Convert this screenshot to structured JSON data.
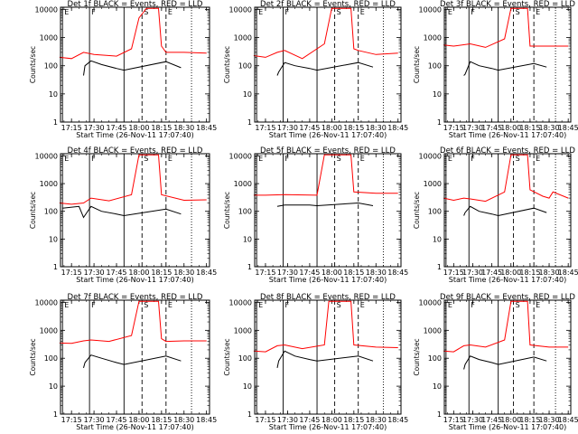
{
  "figure": {
    "panels": [
      {
        "title": "Det 1f BLACK = Events, RED = LLD",
        "xlabel": "Start Time (26-Nov-11 17:07:40)",
        "ylabel": "Counts/sec"
      },
      {
        "title": "Det 2f BLACK = Events, RED = LLD",
        "xlabel": "Start Time (26-Nov-11 17:07:40)",
        "ylabel": "Counts/sec"
      },
      {
        "title": "Det 3f BLACK = Events, RED = LLD",
        "xlabel": "Start Time (26-Nov-11 17:07:40)",
        "ylabel": "Counts/sec"
      },
      {
        "title": "Det 4f BLACK = Events, RED = LLD",
        "xlabel": "Start Time (26-Nov-11 17:07:40)",
        "ylabel": "Counts/sec"
      },
      {
        "title": "Det 5f BLACK = Events, RED = LLD",
        "xlabel": "Start Time (26-Nov-11 17:07:40)",
        "ylabel": "Counts/sec"
      },
      {
        "title": "Det 6f BLACK = Events, RED = LLD",
        "xlabel": "Start Time (26-Nov-11 17:07:40)",
        "ylabel": "Counts/sec"
      },
      {
        "title": "Det 7f BLACK = Events, RED = LLD",
        "xlabel": "Start Time (26-Nov-11 17:07:40)",
        "ylabel": "Counts/sec"
      },
      {
        "title": "Det 8f BLACK = Events, RED = LLD",
        "xlabel": "Start Time (26-Nov-11 17:07:40)",
        "ylabel": "Counts/sec"
      },
      {
        "title": "Det 9f BLACK = Events, RED = LLD",
        "xlabel": "Start Time (26-Nov-11 17:07:40)",
        "ylabel": "Counts/sec"
      }
    ]
  },
  "chart_data": {
    "type": "line",
    "y_scale": "log",
    "ylim": [
      1,
      12000
    ],
    "xlim": [
      "17:07:40",
      "18:47"
    ],
    "x_ticks": [
      "17:15",
      "17:30",
      "17:45",
      "18:00",
      "18:15",
      "18:30",
      "18:45"
    ],
    "y_ticks": [
      "1",
      "10",
      "100",
      "1000",
      "10000"
    ],
    "colors": {
      "events": "#000000",
      "lld": "#ff0000"
    },
    "markers": [
      {
        "time": "17:09",
        "style": "solid",
        "label": "E"
      },
      {
        "time": "17:27",
        "style": "solid",
        "label": "F"
      },
      {
        "time": "17:50",
        "style": "solid",
        "label": ""
      },
      {
        "time": "18:02",
        "style": "dashed",
        "label": "S"
      },
      {
        "time": "18:18",
        "style": "dashed",
        "label": "E"
      },
      {
        "time": "18:35",
        "style": "dotted",
        "label": ""
      }
    ],
    "series": [
      {
        "events": [
          [
            "17:23",
            45
          ],
          [
            "17:24",
            100
          ],
          [
            "17:28",
            150
          ],
          [
            "17:35",
            110
          ],
          [
            "17:45",
            80
          ],
          [
            "17:50",
            70
          ],
          [
            "18:18",
            140
          ],
          [
            "18:28",
            85
          ]
        ],
        "lld": [
          [
            "17:07",
            200
          ],
          [
            "17:15",
            180
          ],
          [
            "17:23",
            300
          ],
          [
            "17:30",
            250
          ],
          [
            "17:45",
            220
          ],
          [
            "17:55",
            400
          ],
          [
            "18:00",
            5000
          ],
          [
            "18:05",
            11000
          ],
          [
            "18:13",
            11000
          ],
          [
            "18:15",
            500
          ],
          [
            "18:18",
            300
          ],
          [
            "18:30",
            300
          ],
          [
            "18:45",
            280
          ]
        ]
      },
      {
        "events": [
          [
            "17:23",
            45
          ],
          [
            "17:24",
            60
          ],
          [
            "17:28",
            130
          ],
          [
            "17:35",
            100
          ],
          [
            "17:45",
            80
          ],
          [
            "17:50",
            70
          ],
          [
            "18:18",
            130
          ],
          [
            "18:28",
            90
          ]
        ],
        "lld": [
          [
            "17:07",
            230
          ],
          [
            "17:15",
            200
          ],
          [
            "17:23",
            300
          ],
          [
            "17:28",
            350
          ],
          [
            "17:40",
            180
          ],
          [
            "17:55",
            600
          ],
          [
            "18:00",
            11000
          ],
          [
            "18:13",
            11000
          ],
          [
            "18:15",
            400
          ],
          [
            "18:18",
            350
          ],
          [
            "18:30",
            250
          ],
          [
            "18:45",
            280
          ]
        ]
      },
      {
        "events": [
          [
            "17:23",
            45
          ],
          [
            "17:24",
            50
          ],
          [
            "17:28",
            140
          ],
          [
            "17:35",
            100
          ],
          [
            "17:45",
            80
          ],
          [
            "17:50",
            70
          ],
          [
            "18:18",
            120
          ],
          [
            "18:28",
            90
          ]
        ],
        "lld": [
          [
            "17:07",
            550
          ],
          [
            "17:15",
            500
          ],
          [
            "17:28",
            600
          ],
          [
            "17:40",
            450
          ],
          [
            "17:55",
            900
          ],
          [
            "18:00",
            11000
          ],
          [
            "18:13",
            11000
          ],
          [
            "18:15",
            500
          ],
          [
            "18:30",
            500
          ],
          [
            "18:45",
            500
          ]
        ]
      },
      {
        "events": [
          [
            "17:09",
            130
          ],
          [
            "17:20",
            150
          ],
          [
            "17:23",
            60
          ],
          [
            "17:28",
            150
          ],
          [
            "17:35",
            100
          ],
          [
            "17:45",
            80
          ],
          [
            "17:50",
            70
          ],
          [
            "18:18",
            120
          ],
          [
            "18:28",
            80
          ]
        ],
        "lld": [
          [
            "17:07",
            200
          ],
          [
            "17:15",
            180
          ],
          [
            "17:23",
            200
          ],
          [
            "17:28",
            300
          ],
          [
            "17:40",
            240
          ],
          [
            "17:55",
            400
          ],
          [
            "18:00",
            11000
          ],
          [
            "18:13",
            11000
          ],
          [
            "18:15",
            400
          ],
          [
            "18:30",
            250
          ],
          [
            "18:45",
            260
          ]
        ]
      },
      {
        "events": [
          [
            "17:23",
            150
          ],
          [
            "17:28",
            170
          ],
          [
            "17:45",
            170
          ],
          [
            "17:50",
            160
          ],
          [
            "18:18",
            200
          ],
          [
            "18:28",
            160
          ]
        ],
        "lld": [
          [
            "17:07",
            380
          ],
          [
            "17:15",
            380
          ],
          [
            "17:28",
            400
          ],
          [
            "17:50",
            380
          ],
          [
            "17:55",
            11000
          ],
          [
            "18:13",
            11000
          ],
          [
            "18:15",
            500
          ],
          [
            "18:30",
            450
          ],
          [
            "18:45",
            450
          ]
        ]
      },
      {
        "events": [
          [
            "17:23",
            70
          ],
          [
            "17:24",
            90
          ],
          [
            "17:28",
            150
          ],
          [
            "17:35",
            100
          ],
          [
            "17:45",
            80
          ],
          [
            "17:50",
            70
          ],
          [
            "18:18",
            130
          ],
          [
            "18:28",
            90
          ]
        ],
        "lld": [
          [
            "17:07",
            300
          ],
          [
            "17:15",
            250
          ],
          [
            "17:23",
            300
          ],
          [
            "17:28",
            280
          ],
          [
            "17:40",
            230
          ],
          [
            "17:55",
            500
          ],
          [
            "18:00",
            11000
          ],
          [
            "18:13",
            11000
          ],
          [
            "18:15",
            600
          ],
          [
            "18:25",
            350
          ],
          [
            "18:30",
            300
          ],
          [
            "18:33",
            500
          ],
          [
            "18:45",
            300
          ]
        ]
      },
      {
        "events": [
          [
            "17:23",
            45
          ],
          [
            "17:24",
            70
          ],
          [
            "17:28",
            130
          ],
          [
            "17:35",
            100
          ],
          [
            "17:45",
            70
          ],
          [
            "17:50",
            60
          ],
          [
            "18:18",
            120
          ],
          [
            "18:28",
            80
          ]
        ],
        "lld": [
          [
            "17:07",
            350
          ],
          [
            "17:15",
            340
          ],
          [
            "17:23",
            420
          ],
          [
            "17:28",
            450
          ],
          [
            "17:40",
            400
          ],
          [
            "17:55",
            650
          ],
          [
            "18:00",
            11000
          ],
          [
            "18:13",
            11000
          ],
          [
            "18:15",
            500
          ],
          [
            "18:18",
            400
          ],
          [
            "18:30",
            420
          ],
          [
            "18:45",
            420
          ]
        ]
      },
      {
        "events": [
          [
            "17:23",
            45
          ],
          [
            "17:24",
            80
          ],
          [
            "17:28",
            180
          ],
          [
            "17:35",
            120
          ],
          [
            "17:45",
            90
          ],
          [
            "17:50",
            80
          ],
          [
            "18:18",
            120
          ],
          [
            "18:28",
            80
          ]
        ],
        "lld": [
          [
            "17:07",
            180
          ],
          [
            "17:15",
            170
          ],
          [
            "17:23",
            280
          ],
          [
            "17:28",
            300
          ],
          [
            "17:40",
            220
          ],
          [
            "17:55",
            300
          ],
          [
            "17:58",
            11000
          ],
          [
            "18:13",
            11000
          ],
          [
            "18:15",
            300
          ],
          [
            "18:30",
            250
          ],
          [
            "18:45",
            240
          ]
        ]
      },
      {
        "events": [
          [
            "17:23",
            40
          ],
          [
            "17:24",
            60
          ],
          [
            "17:28",
            120
          ],
          [
            "17:35",
            90
          ],
          [
            "17:45",
            70
          ],
          [
            "17:50",
            60
          ],
          [
            "18:18",
            110
          ],
          [
            "18:28",
            80
          ]
        ],
        "lld": [
          [
            "17:07",
            180
          ],
          [
            "17:15",
            170
          ],
          [
            "17:23",
            280
          ],
          [
            "17:28",
            300
          ],
          [
            "17:40",
            250
          ],
          [
            "17:55",
            450
          ],
          [
            "18:00",
            11000
          ],
          [
            "18:13",
            11000
          ],
          [
            "18:15",
            300
          ],
          [
            "18:30",
            250
          ],
          [
            "18:45",
            250
          ]
        ]
      }
    ]
  }
}
